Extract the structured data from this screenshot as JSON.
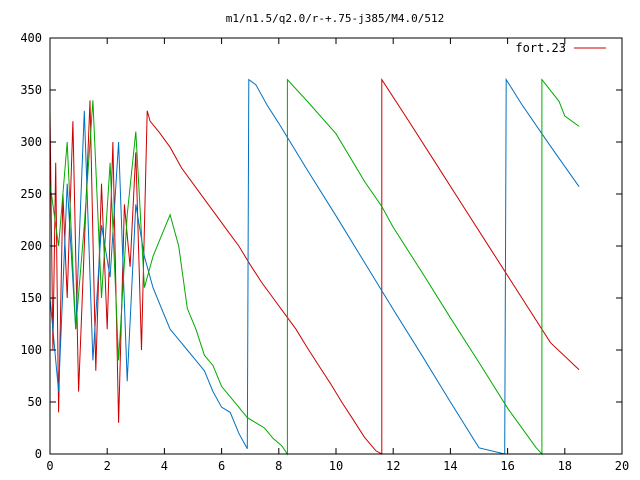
{
  "chart_data": {
    "type": "line",
    "title": "m1/n1.5/q2.0/r-+.75-j385/M4.0/512",
    "xlabel": "",
    "ylabel": "",
    "xlim": [
      0,
      20
    ],
    "ylim": [
      0,
      400
    ],
    "x_ticks": [
      0,
      2,
      4,
      6,
      8,
      10,
      12,
      14,
      16,
      18,
      20
    ],
    "y_ticks": [
      0,
      50,
      100,
      150,
      200,
      250,
      300,
      350,
      400
    ],
    "grid": false,
    "legend": {
      "position": "top-right",
      "entries": [
        "fort.23"
      ]
    },
    "series": [
      {
        "name": "fort.23",
        "color": "#cc0000",
        "x": [
          0.0,
          0.1,
          0.2,
          0.3,
          0.45,
          0.6,
          0.8,
          1.0,
          1.2,
          1.4,
          1.6,
          1.8,
          2.0,
          2.2,
          2.4,
          2.6,
          2.8,
          3.0,
          3.2,
          3.4,
          3.5,
          3.8,
          4.2,
          4.6,
          5.0,
          5.4,
          5.8,
          6.2,
          6.6,
          7.0,
          7.4,
          7.8,
          8.2,
          8.6,
          9.0,
          9.4,
          9.8,
          10.2,
          10.6,
          11.0,
          11.4,
          11.6,
          11.6,
          12.5,
          13.5,
          14.5,
          15.5,
          16.5,
          17.5,
          18.5
        ],
        "y": [
          330,
          100,
          280,
          40,
          250,
          150,
          320,
          60,
          200,
          340,
          80,
          260,
          120,
          300,
          30,
          240,
          180,
          290,
          100,
          330,
          320,
          310,
          295,
          275,
          260,
          245,
          230,
          215,
          200,
          182,
          165,
          150,
          135,
          120,
          102,
          85,
          68,
          50,
          33,
          16,
          3,
          0,
          360,
          322,
          279,
          236,
          193,
          150,
          107,
          81
        ]
      },
      {
        "name": "",
        "color": "#0070c0",
        "x": [
          0.0,
          0.3,
          0.6,
          0.9,
          1.2,
          1.5,
          1.8,
          2.1,
          2.4,
          2.7,
          3.0,
          3.3,
          3.6,
          3.9,
          4.2,
          4.5,
          4.8,
          5.1,
          5.4,
          5.7,
          6.0,
          6.3,
          6.6,
          6.9,
          6.95,
          7.2,
          7.6,
          8.0,
          9.0,
          10.0,
          11.0,
          12.0,
          13.0,
          14.0,
          15.0,
          15.9,
          15.95,
          16.5,
          17.5,
          18.5
        ],
        "y": [
          150,
          60,
          260,
          120,
          330,
          90,
          220,
          170,
          300,
          70,
          240,
          190,
          160,
          140,
          120,
          110,
          100,
          90,
          80,
          60,
          45,
          40,
          20,
          5,
          360,
          355,
          335,
          318,
          273,
          229,
          184,
          139,
          95,
          50,
          6,
          0,
          360,
          336,
          296,
          257
        ]
      },
      {
        "name": "",
        "color": "#00aa00",
        "x": [
          0.0,
          0.3,
          0.6,
          0.9,
          1.2,
          1.5,
          1.8,
          2.1,
          2.4,
          2.7,
          3.0,
          3.3,
          3.6,
          3.9,
          4.2,
          4.5,
          4.8,
          5.1,
          5.4,
          5.7,
          6.0,
          6.3,
          6.6,
          6.9,
          7.2,
          7.5,
          7.8,
          8.1,
          8.3,
          8.3,
          9.0,
          10.0,
          11.0,
          11.6,
          12.0,
          13.0,
          14.0,
          15.0,
          16.0,
          17.0,
          17.2,
          17.2,
          17.8,
          18.0,
          18.5
        ],
        "y": [
          260,
          200,
          300,
          120,
          220,
          340,
          150,
          280,
          90,
          230,
          310,
          160,
          190,
          210,
          230,
          200,
          140,
          120,
          95,
          85,
          65,
          55,
          45,
          35,
          30,
          25,
          15,
          8,
          0,
          360,
          339,
          308,
          262,
          238,
          218,
          175,
          131,
          88,
          44,
          6,
          0,
          360,
          339,
          325,
          315
        ]
      }
    ]
  }
}
